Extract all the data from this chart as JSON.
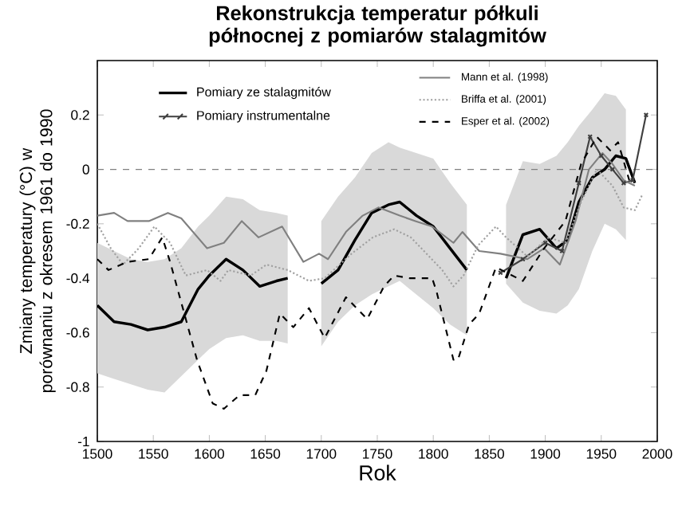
{
  "chart_data": {
    "type": "line",
    "title": "Rekonstrukcja temperatur półkuli północnej z pomiarów stalagmitów",
    "xlabel": "Rok",
    "ylabel": "Zmiany temperatury (°C) w porównaniu z okresem 1961 do 1990",
    "xlim": [
      1500,
      2000
    ],
    "xticks": [
      1500,
      1550,
      1600,
      1650,
      1700,
      1750,
      1800,
      1850,
      1900,
      1950,
      2000
    ],
    "ylim": [
      -1,
      0.4
    ],
    "yticks": [
      -1,
      -0.8,
      -0.6,
      -0.4,
      -0.2,
      0,
      0.2
    ],
    "legend": "top",
    "ref_lines": [
      {
        "axis": "y",
        "value": 0,
        "color": "#808080",
        "line_style": "dashed"
      }
    ],
    "series": [
      {
        "name": "Pomiary ze stalagmitów",
        "color": "#000000",
        "line_style": "solid",
        "marker": "none",
        "x": [
          1500,
          1515,
          1530,
          1545,
          1560,
          1575,
          1590,
          1600,
          1615,
          1630,
          1645,
          1660,
          1670,
          1685,
          1700,
          1715,
          1730,
          1745,
          1760,
          1770,
          1785,
          1800,
          1815,
          1830,
          1848,
          1865,
          1880,
          1895,
          1910,
          1920,
          1930,
          1942,
          1953,
          1963,
          1972,
          1980
        ],
        "values": [
          -0.5,
          -0.56,
          -0.57,
          -0.59,
          -0.58,
          -0.56,
          -0.44,
          -0.39,
          -0.33,
          -0.37,
          -0.43,
          -0.41,
          -0.4,
          null,
          -0.42,
          -0.37,
          -0.26,
          -0.16,
          -0.13,
          -0.12,
          -0.17,
          -0.21,
          -0.29,
          -0.37,
          null,
          -0.4,
          -0.24,
          -0.22,
          -0.29,
          -0.26,
          -0.12,
          -0.03,
          0.0,
          0.05,
          0.04,
          -0.05
        ],
        "lower": [
          -0.75,
          -0.77,
          -0.79,
          -0.81,
          -0.82,
          -0.76,
          -0.7,
          -0.66,
          -0.62,
          -0.61,
          -0.63,
          -0.63,
          -0.64,
          null,
          -0.65,
          -0.56,
          -0.5,
          -0.46,
          -0.43,
          -0.41,
          -0.46,
          -0.51,
          -0.57,
          -0.61,
          null,
          -0.42,
          -0.49,
          -0.52,
          -0.53,
          -0.5,
          -0.44,
          -0.3,
          -0.2,
          -0.22,
          -0.26,
          null
        ],
        "upper": [
          -0.27,
          -0.3,
          -0.33,
          -0.34,
          -0.33,
          -0.29,
          -0.21,
          -0.17,
          -0.1,
          -0.11,
          -0.15,
          -0.16,
          -0.17,
          null,
          -0.19,
          -0.1,
          -0.03,
          0.06,
          0.1,
          0.08,
          0.06,
          0.04,
          -0.05,
          -0.13,
          null,
          -0.13,
          0.03,
          0.02,
          0.05,
          0.1,
          0.16,
          0.22,
          0.28,
          0.27,
          0.22,
          null
        ]
      },
      {
        "name": "Pomiary instrumentalne",
        "color": "#404040",
        "line_style": "solid",
        "marker": "cross",
        "x": [
          1860,
          1880,
          1900,
          1915,
          1930,
          1940,
          1950,
          1960,
          1970,
          1978,
          1990
        ],
        "values": [
          -0.38,
          -0.33,
          -0.27,
          -0.3,
          -0.05,
          0.12,
          0.05,
          0.0,
          -0.05,
          -0.04,
          0.2
        ]
      },
      {
        "name": "Mann et al. (1998)",
        "color": "#808080",
        "line_style": "solid",
        "marker": "none",
        "x": [
          1500,
          1515,
          1527,
          1546,
          1563,
          1575,
          1598,
          1613,
          1629,
          1644,
          1665,
          1684,
          1698,
          1706,
          1722,
          1737,
          1751,
          1770,
          1784,
          1799,
          1818,
          1826,
          1841,
          1860,
          1884,
          1899,
          1913,
          1927,
          1939,
          1951,
          1960,
          1970,
          1980
        ],
        "values": [
          -0.17,
          -0.16,
          -0.19,
          -0.19,
          -0.16,
          -0.18,
          -0.29,
          -0.27,
          -0.19,
          -0.25,
          -0.21,
          -0.34,
          -0.31,
          -0.33,
          -0.23,
          -0.17,
          -0.14,
          -0.17,
          -0.19,
          -0.21,
          -0.27,
          -0.23,
          -0.3,
          -0.31,
          -0.33,
          -0.29,
          -0.35,
          -0.19,
          0.0,
          0.06,
          0.02,
          -0.04,
          -0.06
        ]
      },
      {
        "name": "Briffa et al. (2001)",
        "color": "#a0a0a0",
        "line_style": "dotted",
        "marker": "none",
        "x": [
          1500,
          1512,
          1523,
          1537,
          1551,
          1565,
          1579,
          1598,
          1610,
          1617,
          1637,
          1651,
          1670,
          1689,
          1703,
          1727,
          1746,
          1765,
          1780,
          1794,
          1808,
          1818,
          1827,
          1840,
          1856,
          1865,
          1884,
          1903,
          1918,
          1932,
          1946,
          1960,
          1970,
          1980,
          1987
        ],
        "values": [
          -0.2,
          -0.29,
          -0.35,
          -0.29,
          -0.21,
          -0.27,
          -0.39,
          -0.37,
          -0.41,
          -0.37,
          -0.39,
          -0.35,
          -0.37,
          -0.41,
          -0.4,
          -0.31,
          -0.25,
          -0.22,
          -0.25,
          -0.31,
          -0.37,
          -0.43,
          -0.39,
          -0.28,
          -0.21,
          -0.25,
          -0.32,
          -0.25,
          -0.27,
          -0.12,
          0.0,
          -0.06,
          -0.14,
          -0.15,
          -0.09
        ]
      },
      {
        "name": "Esper et al. (2002)",
        "color": "#000000",
        "line_style": "dashed",
        "marker": "none",
        "x": [
          1500,
          1510,
          1527,
          1546,
          1558,
          1565,
          1575,
          1589,
          1603,
          1613,
          1627,
          1641,
          1651,
          1663,
          1675,
          1689,
          1703,
          1722,
          1741,
          1756,
          1765,
          1779,
          1799,
          1803,
          1818,
          1822,
          1832,
          1841,
          1856,
          1880,
          1899,
          1918,
          1932,
          1946,
          1958,
          1965,
          1975
        ],
        "values": [
          -0.33,
          -0.37,
          -0.34,
          -0.33,
          -0.25,
          -0.34,
          -0.49,
          -0.7,
          -0.86,
          -0.88,
          -0.83,
          -0.83,
          -0.74,
          -0.53,
          -0.58,
          -0.51,
          -0.62,
          -0.47,
          -0.55,
          -0.43,
          -0.39,
          -0.4,
          -0.4,
          -0.45,
          -0.7,
          -0.7,
          -0.57,
          -0.53,
          -0.36,
          -0.41,
          -0.29,
          -0.19,
          0.02,
          0.12,
          0.07,
          0.1,
          -0.04
        ]
      }
    ]
  }
}
